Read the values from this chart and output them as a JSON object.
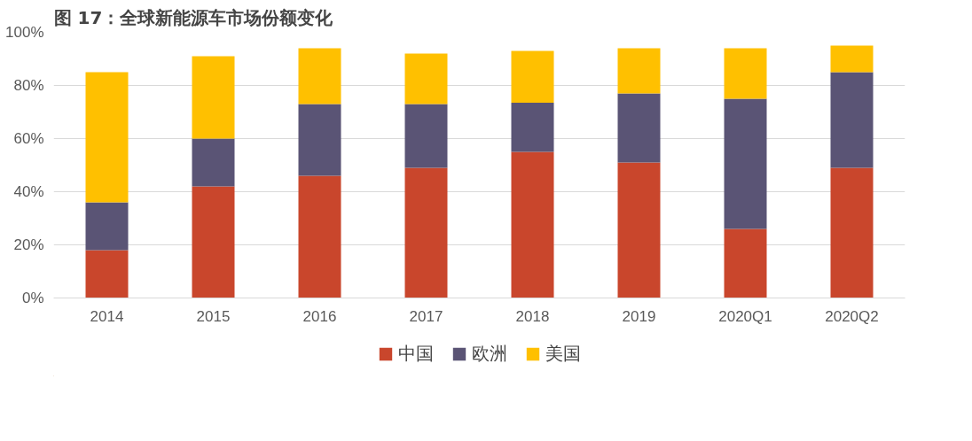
{
  "chart_data": {
    "type": "bar",
    "title": "图 17：全球新能源车市场份额变化",
    "stacked": true,
    "categories": [
      "2014",
      "2015",
      "2016",
      "2017",
      "2018",
      "2019",
      "2020Q1",
      "2020Q2"
    ],
    "series": [
      {
        "name": "中国",
        "color": "#c9462c",
        "values": [
          18,
          42,
          46,
          49,
          55,
          51,
          26,
          49
        ]
      },
      {
        "name": "欧洲",
        "color": "#5a5475",
        "values": [
          18,
          18,
          27,
          24,
          18.5,
          26,
          49,
          36
        ]
      },
      {
        "name": "美国",
        "color": "#ffc000",
        "values": [
          49,
          31,
          21,
          19,
          19.5,
          17,
          19,
          10
        ]
      }
    ],
    "ylim": [
      0,
      100
    ],
    "yticks": [
      {
        "value": 0,
        "label": "0%"
      },
      {
        "value": 20,
        "label": "20%"
      },
      {
        "value": 40,
        "label": "40%"
      },
      {
        "value": 60,
        "label": "60%"
      },
      {
        "value": 80,
        "label": "80%"
      },
      {
        "value": 100,
        "label": "100%"
      }
    ],
    "grid": "y",
    "legend": "bottom"
  }
}
